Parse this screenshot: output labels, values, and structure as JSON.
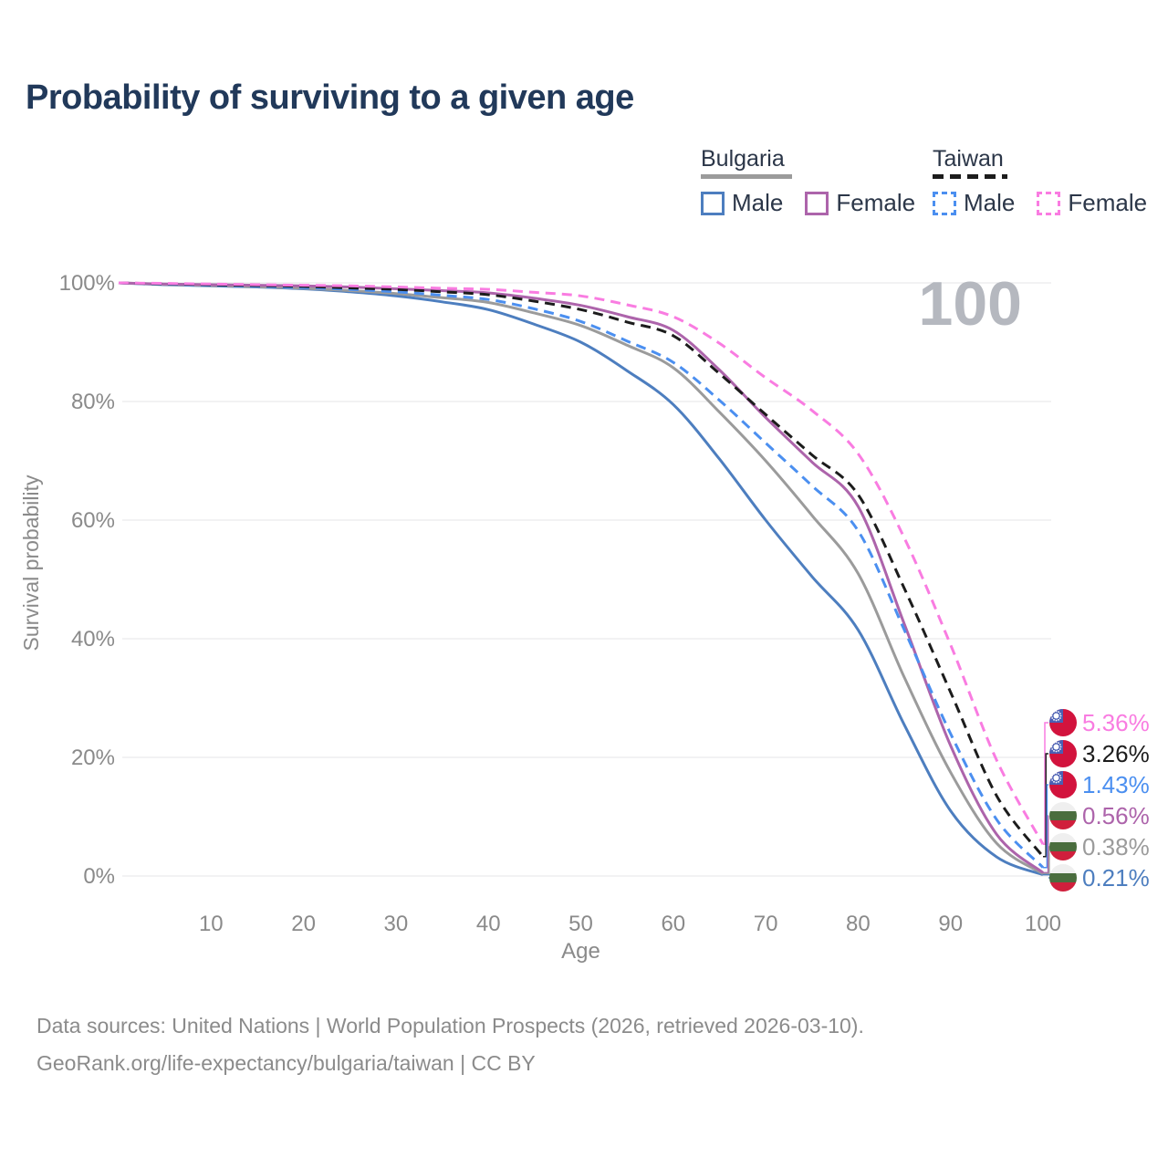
{
  "title": "Probability of surviving to a given age",
  "watermark": "100",
  "legend": {
    "groups": [
      {
        "title": "Bulgaria",
        "underline_style": "solid",
        "underline_color": "#9b9b9b",
        "underline_width": 100,
        "items": [
          {
            "label": "Male",
            "color": "#4d7ebf",
            "dashed": false
          },
          {
            "label": "Female",
            "color": "#ad64ab",
            "dashed": false
          }
        ]
      },
      {
        "title": "Taiwan",
        "underline_style": "dashed",
        "underline_color": "#1c1c1c",
        "underline_width": 82,
        "items": [
          {
            "label": "Male",
            "color": "#4b8ff0",
            "dashed": true
          },
          {
            "label": "Female",
            "color": "#f97ce1",
            "dashed": true
          }
        ]
      }
    ]
  },
  "chart_data": {
    "type": "line",
    "title": "Probability of surviving to a given age",
    "xlabel": "Age",
    "ylabel": "Survival probability",
    "xlim": [
      0,
      100
    ],
    "ylim": [
      0,
      100
    ],
    "grid": "horizontal",
    "legend_position": "top-right",
    "age_counter": "100",
    "xticks": [
      10,
      20,
      30,
      40,
      50,
      60,
      70,
      80,
      90,
      100
    ],
    "yticks": [
      {
        "value": 0,
        "label": "0%"
      },
      {
        "value": 20,
        "label": "20%"
      },
      {
        "value": 40,
        "label": "40%"
      },
      {
        "value": 60,
        "label": "60%"
      },
      {
        "value": 80,
        "label": "80%"
      },
      {
        "value": 100,
        "label": "100%"
      }
    ],
    "x": [
      0,
      5,
      10,
      15,
      20,
      25,
      30,
      35,
      40,
      45,
      50,
      55,
      60,
      65,
      70,
      75,
      80,
      85,
      90,
      95,
      100
    ],
    "series": [
      {
        "name": "Taiwan Female",
        "country": "Taiwan",
        "sex": "Female",
        "color": "#f97ce1",
        "dashed": true,
        "flag": "taiwan",
        "end_label": "5.36%",
        "values": [
          100,
          99.9,
          99.8,
          99.7,
          99.6,
          99.5,
          99.3,
          99.1,
          98.9,
          98.4,
          97.8,
          96.3,
          94.3,
          89.8,
          84.0,
          78.5,
          71.2,
          57.0,
          39.0,
          19.5,
          5.36
        ]
      },
      {
        "name": "Taiwan",
        "country": "Taiwan",
        "sex": "Both",
        "color": "#1c1c1c",
        "dashed": true,
        "flag": "taiwan",
        "end_label": "3.26%",
        "values": [
          100,
          99.85,
          99.7,
          99.55,
          99.4,
          99.15,
          98.9,
          98.5,
          98.0,
          96.9,
          95.5,
          93.4,
          91.1,
          84.7,
          77.8,
          71.0,
          64.3,
          48.5,
          31.0,
          13.5,
          3.26
        ]
      },
      {
        "name": "Taiwan Male",
        "country": "Taiwan",
        "sex": "Male",
        "color": "#4b8ff0",
        "dashed": true,
        "flag": "taiwan",
        "end_label": "1.43%",
        "values": [
          100,
          99.8,
          99.6,
          99.4,
          99.2,
          98.9,
          98.5,
          97.9,
          97.2,
          95.6,
          93.5,
          90.2,
          86.6,
          80.2,
          73.0,
          65.8,
          58.2,
          41.5,
          24.0,
          9.5,
          1.43
        ]
      },
      {
        "name": "Bulgaria Female",
        "country": "Bulgaria",
        "sex": "Female",
        "color": "#ad64ab",
        "dashed": false,
        "flag": "bulgaria",
        "end_label": "0.56%",
        "values": [
          100,
          99.8,
          99.7,
          99.6,
          99.5,
          99.3,
          99.0,
          98.7,
          98.3,
          97.4,
          96.2,
          94.3,
          92.0,
          85.3,
          77.3,
          69.8,
          62.3,
          42.5,
          22.0,
          7.0,
          0.56
        ]
      },
      {
        "name": "Bulgaria",
        "country": "Bulgaria",
        "sex": "Both",
        "color": "#9b9b9b",
        "dashed": false,
        "flag": "bulgaria",
        "end_label": "0.38%",
        "values": [
          100,
          99.75,
          99.55,
          99.35,
          99.1,
          98.7,
          98.2,
          97.5,
          96.7,
          94.9,
          92.8,
          89.5,
          85.7,
          78.2,
          70.0,
          60.8,
          51.0,
          33.5,
          17.5,
          5.5,
          0.38
        ]
      },
      {
        "name": "Bulgaria Male",
        "country": "Bulgaria",
        "sex": "Male",
        "color": "#4d7ebf",
        "dashed": false,
        "flag": "bulgaria",
        "end_label": "0.21%",
        "values": [
          100,
          99.7,
          99.5,
          99.3,
          99.0,
          98.5,
          97.8,
          96.8,
          95.5,
          93.0,
          90.0,
          85.2,
          79.5,
          70.3,
          60.0,
          50.5,
          41.5,
          25.5,
          11.0,
          3.2,
          0.21
        ]
      }
    ]
  },
  "flags": {
    "taiwan": {
      "red": "#d2133d",
      "blue": "#4a5fb4",
      "sun": "#ffffff"
    },
    "bulgaria": {
      "white": "#efefef",
      "green": "#4a6d3e",
      "red": "#d01f3c"
    }
  },
  "style": {
    "grid_color": "#e9e9ec",
    "tick_color": "#8a8a8a",
    "watermark_color": "#b5b8bf"
  },
  "footer": {
    "line1": "Data sources: United Nations | World Population Prospects (2026, retrieved 2026-03-10).",
    "line2": "GeoRank.org/life-expectancy/bulgaria/taiwan | CC BY"
  }
}
